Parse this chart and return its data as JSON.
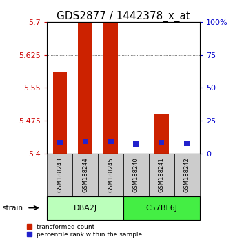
{
  "title": "GDS2877 / 1442378_x_at",
  "samples": [
    "GSM188243",
    "GSM188244",
    "GSM188245",
    "GSM188240",
    "GSM188241",
    "GSM188242"
  ],
  "group_colors": [
    "#bbffbb",
    "#44ee44"
  ],
  "bar_bottom": 5.4,
  "red_bar_tops": [
    5.585,
    5.7,
    5.7,
    5.4,
    5.49,
    5.4
  ],
  "blue_values": [
    5.425,
    5.428,
    5.428,
    5.422,
    5.425,
    5.423
  ],
  "ylim": [
    5.4,
    5.7
  ],
  "yticks_left": [
    5.4,
    5.475,
    5.55,
    5.625,
    5.7
  ],
  "yticks_right": [
    0,
    25,
    50,
    75,
    100
  ],
  "ylabel_left_color": "#cc0000",
  "ylabel_right_color": "#0000cc",
  "bar_color_red": "#cc2200",
  "bar_color_blue": "#2222cc",
  "sample_box_color": "#cccccc",
  "title_fontsize": 11,
  "tick_fontsize": 8,
  "bar_width": 0.55,
  "blue_square_size": 30,
  "strain_label": "strain",
  "legend_red": "transformed count",
  "legend_blue": "percentile rank within the sample",
  "group_info": [
    {
      "label": "DBA2J",
      "start": 0,
      "end": 3,
      "color_idx": 0
    },
    {
      "label": "C57BL6J",
      "start": 3,
      "end": 6,
      "color_idx": 1
    }
  ]
}
